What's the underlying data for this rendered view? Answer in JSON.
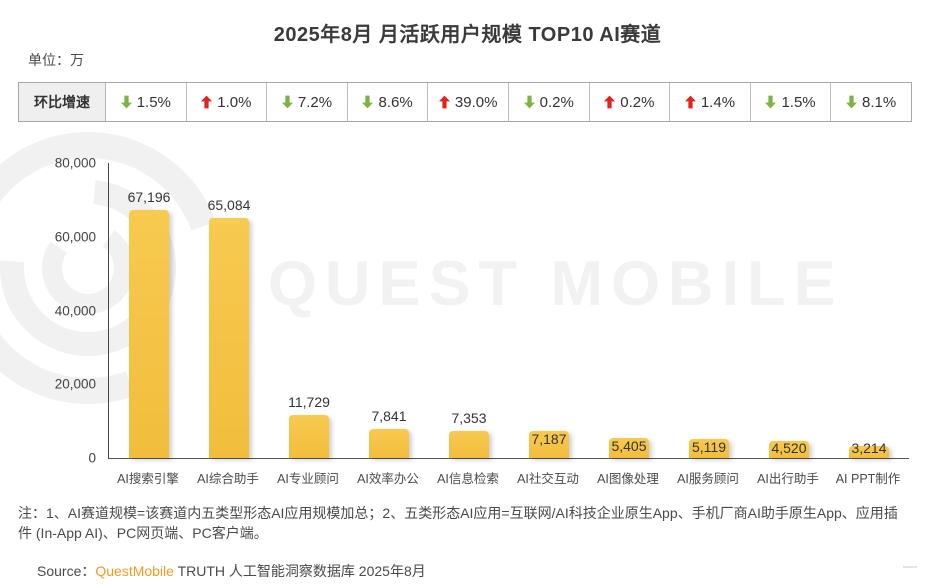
{
  "page": {
    "title": "2025年8月 月活跃用户规模 TOP10 AI赛道",
    "unit_label": "单位：万",
    "watermark": "QUEST MOBILE",
    "note": "注：1、AI赛道规模=该赛道内五类型形态AI应用规模加总；2、五类形态AI应用=互联网/AI科技企业原生App、手机厂商AI助手原生App、应用插件 (In-App AI)、PC网页端、PC客户端。",
    "source_prefix": "Source：",
    "source_brand": "QuestMobile",
    "source_suffix": " TRUTH 人工智能洞察数据库 2025年8月"
  },
  "growth_table": {
    "header": "环比增速",
    "cells": [
      {
        "direction": "down",
        "value": "1.5%"
      },
      {
        "direction": "up",
        "value": "1.0%"
      },
      {
        "direction": "down",
        "value": "7.2%"
      },
      {
        "direction": "down",
        "value": "8.6%"
      },
      {
        "direction": "up",
        "value": "39.0%"
      },
      {
        "direction": "down",
        "value": "0.2%"
      },
      {
        "direction": "up",
        "value": "0.2%"
      },
      {
        "direction": "up",
        "value": "1.4%"
      },
      {
        "direction": "down",
        "value": "1.5%"
      },
      {
        "direction": "down",
        "value": "8.1%"
      }
    ]
  },
  "chart_data": {
    "type": "bar",
    "title": "2025年8月 月活跃用户规模 TOP10 AI赛道",
    "unit": "万",
    "categories": [
      "AI搜索引擎",
      "AI综合助手",
      "AI专业顾问",
      "AI效率办公",
      "AI信息检索",
      "AI社交互动",
      "AI图像处理",
      "AI服务顾问",
      "AI出行助手",
      "AI PPT制作"
    ],
    "values": [
      67196,
      65084,
      11729,
      7841,
      7353,
      7187,
      5405,
      5119,
      4520,
      3214
    ],
    "value_labels": [
      "67,196",
      "65,084",
      "11,729",
      "7,841",
      "7,353",
      "7,187",
      "5,405",
      "5,119",
      "4,520",
      "3,214"
    ],
    "mom_growth": [
      "-1.5%",
      "+1.0%",
      "-7.2%",
      "-8.6%",
      "+39.0%",
      "-0.2%",
      "+0.2%",
      "+1.4%",
      "-1.5%",
      "-8.1%"
    ],
    "xlabel": "",
    "ylabel": "",
    "ylim": [
      0,
      80000
    ],
    "yticks": [
      0,
      20000,
      40000,
      60000,
      80000
    ],
    "ytick_labels": [
      "0",
      "20,000",
      "40,000",
      "60,000",
      "80,000"
    ],
    "grid": false,
    "legend": false,
    "bar_color": "#f5c242",
    "label_positions": [
      "above",
      "above",
      "above",
      "above",
      "above",
      "inside",
      "inside",
      "inside",
      "inside",
      "inside"
    ]
  },
  "colors": {
    "up": "#e2231a",
    "down": "#7cb342",
    "bar": "#f5c242",
    "brand_orange": "#f59a23",
    "watermark": "#f2f2f2"
  }
}
